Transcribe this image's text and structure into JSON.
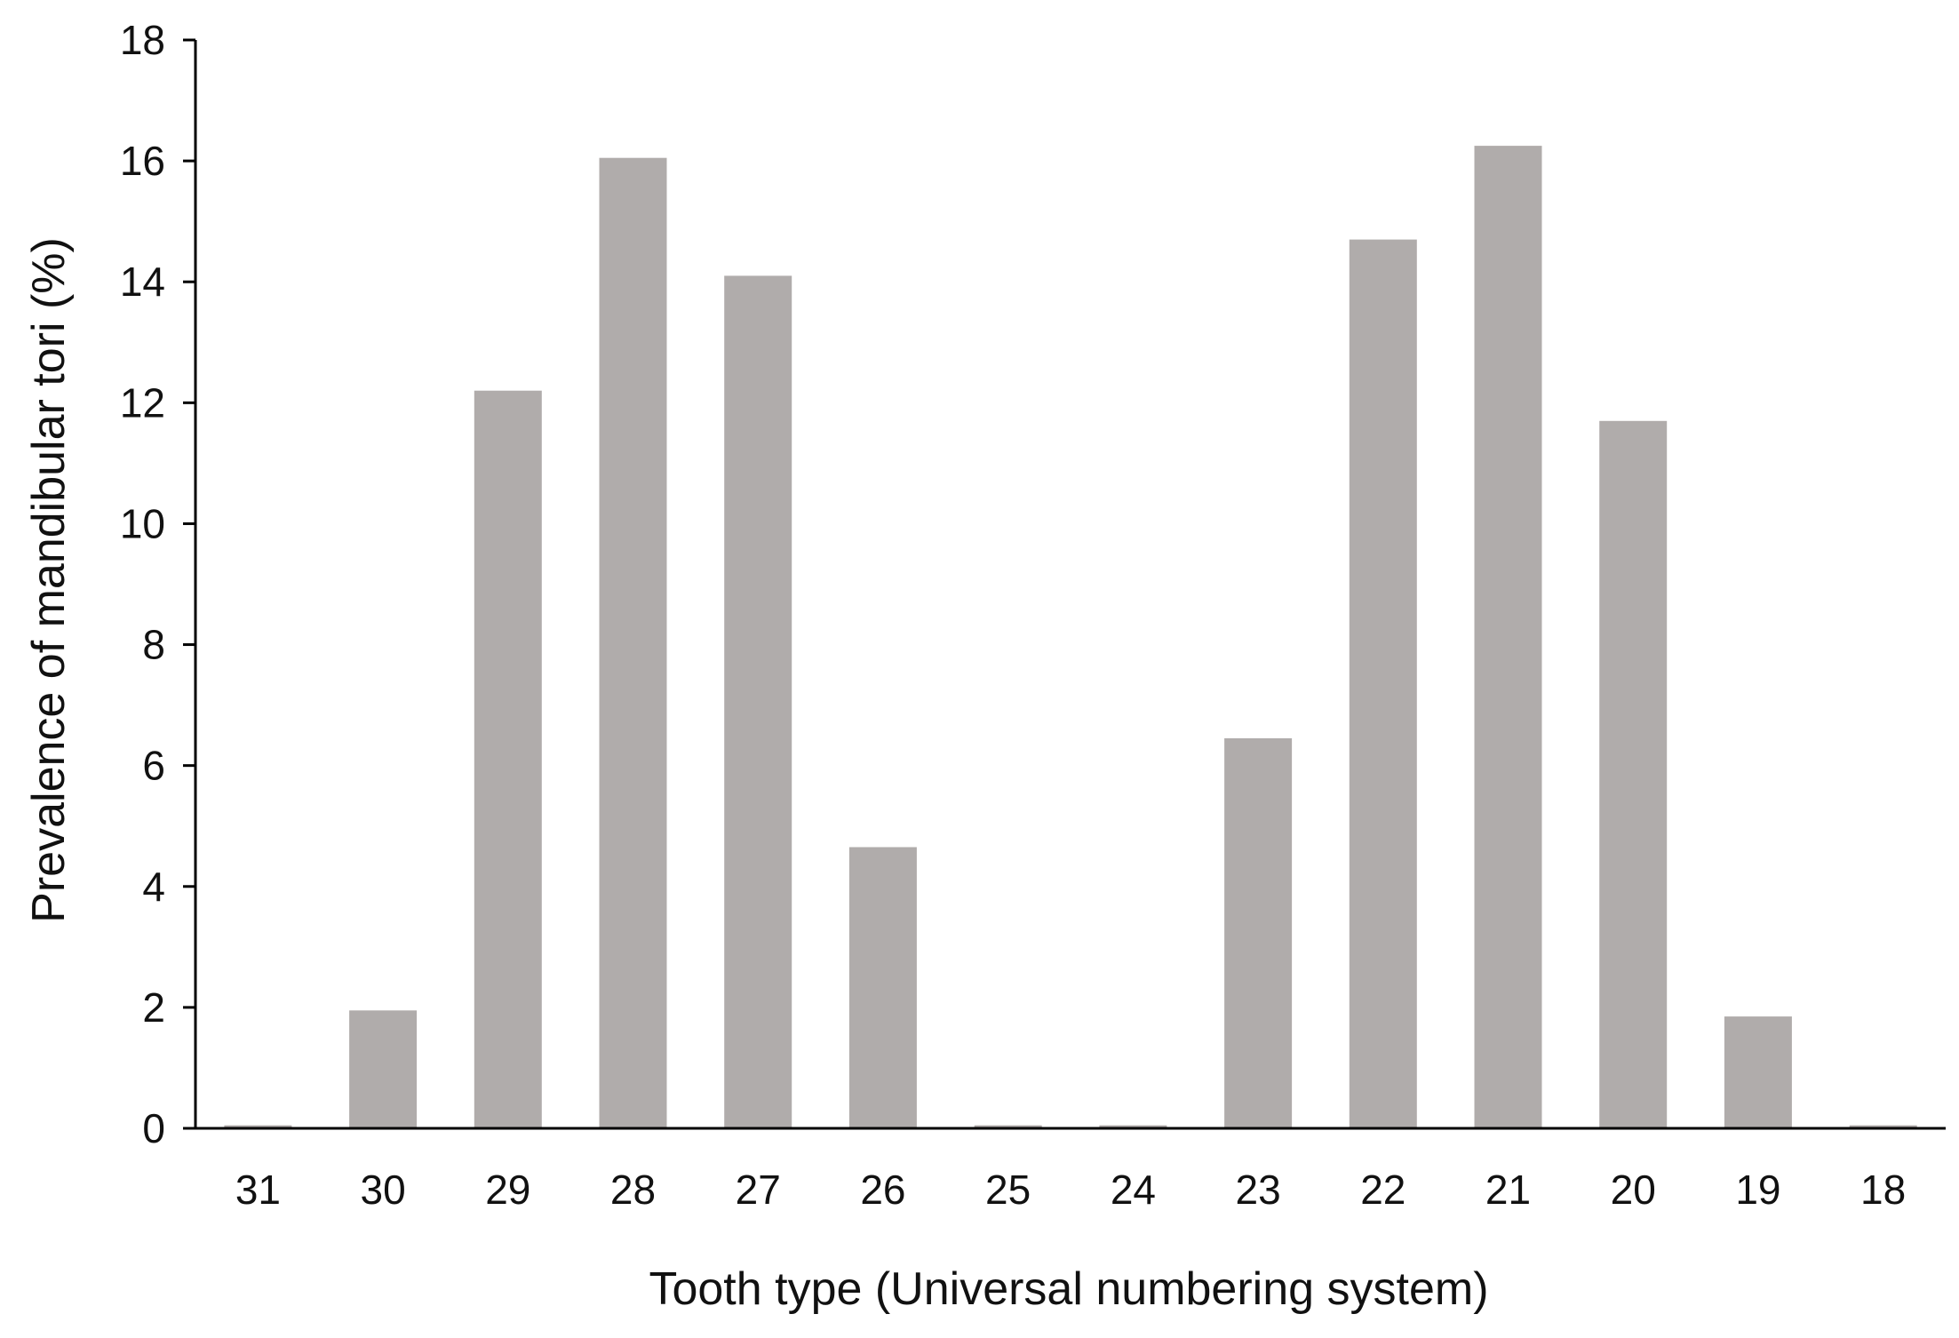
{
  "chart_data": {
    "type": "bar",
    "title": "",
    "xlabel": "Tooth type (Universal numbering system)",
    "ylabel": "Prevalence of mandibular tori (%)",
    "categories": [
      "31",
      "30",
      "29",
      "28",
      "27",
      "26",
      "25",
      "24",
      "23",
      "22",
      "21",
      "20",
      "19",
      "18"
    ],
    "values": [
      0.05,
      1.95,
      12.2,
      16.05,
      14.1,
      4.65,
      0.05,
      0.05,
      6.45,
      14.7,
      16.25,
      11.7,
      1.85,
      0.05
    ],
    "ylim": [
      0,
      18
    ],
    "yticks": [
      "0",
      "2",
      "4",
      "6",
      "8",
      "10",
      "12",
      "14",
      "16",
      "18"
    ],
    "grid": false,
    "legend": "none",
    "bar_color": "#b0acab",
    "axis_color": "#000000"
  }
}
